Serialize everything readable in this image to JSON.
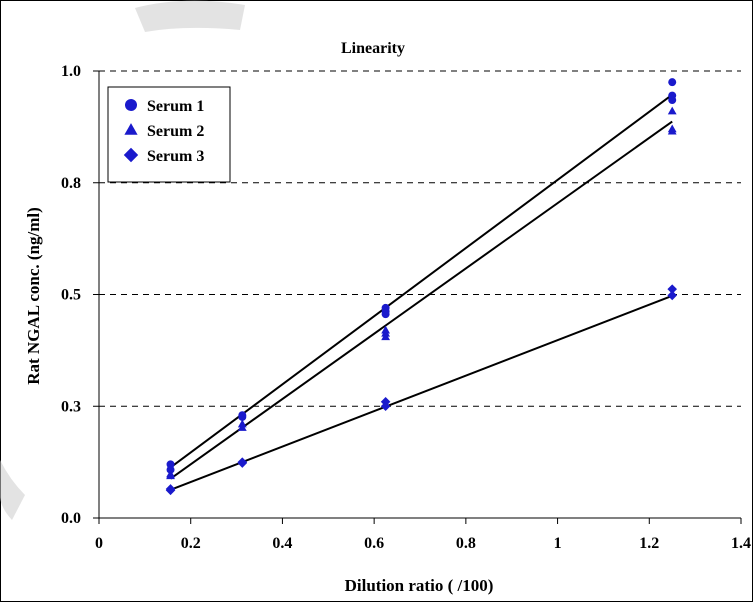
{
  "chart_data": {
    "type": "scatter",
    "title": "Linearity",
    "xlabel": "Dilution ratio ( /100)",
    "ylabel": "Rat NGAL conc. (ng/ml)",
    "xlim": [
      0,
      1.4
    ],
    "ylim": [
      0,
      1.0
    ],
    "x_ticks": [
      0,
      0.2,
      0.4,
      0.6,
      0.8,
      1,
      1.2,
      1.4
    ],
    "x_tick_labels": [
      "0",
      "0.2",
      "0.4",
      "0.6",
      "0.8",
      "1",
      "1.2",
      "1.4"
    ],
    "y_ticks": [
      0,
      0.25,
      0.5,
      0.75,
      1.0
    ],
    "y_tick_labels": [
      "0.0",
      "0.3",
      "0.5",
      "0.8",
      "1.0"
    ],
    "grid": "horizontal dashed",
    "legend_position": "top-left",
    "series": [
      {
        "name": "Serum 1",
        "marker": "circle",
        "color": "#1a1acc",
        "points": [
          [
            0.156,
            0.12
          ],
          [
            0.156,
            0.108
          ],
          [
            0.3125,
            0.23
          ],
          [
            0.3125,
            0.226
          ],
          [
            0.625,
            0.47
          ],
          [
            0.625,
            0.456
          ],
          [
            0.625,
            0.462
          ],
          [
            1.25,
            0.975
          ],
          [
            1.25,
            0.945
          ],
          [
            1.25,
            0.935
          ]
        ],
        "fit": [
          [
            0.156,
            0.113
          ],
          [
            1.25,
            0.947
          ]
        ]
      },
      {
        "name": "Serum 2",
        "marker": "triangle",
        "color": "#1a1acc",
        "points": [
          [
            0.156,
            0.098
          ],
          [
            0.156,
            0.094
          ],
          [
            0.3125,
            0.21
          ],
          [
            0.3125,
            0.202
          ],
          [
            0.625,
            0.42
          ],
          [
            0.625,
            0.405
          ],
          [
            0.625,
            0.413
          ],
          [
            1.25,
            0.91
          ],
          [
            1.25,
            0.87
          ],
          [
            1.25,
            0.865
          ]
        ],
        "fit": [
          [
            0.156,
            0.088
          ],
          [
            1.25,
            0.887
          ]
        ]
      },
      {
        "name": "Serum 3",
        "marker": "diamond",
        "color": "#1a1acc",
        "points": [
          [
            0.156,
            0.065
          ],
          [
            0.156,
            0.062
          ],
          [
            0.3125,
            0.125
          ],
          [
            0.3125,
            0.123
          ],
          [
            0.625,
            0.26
          ],
          [
            0.625,
            0.25
          ],
          [
            1.25,
            0.512
          ],
          [
            1.25,
            0.498
          ]
        ],
        "fit": [
          [
            0.156,
            0.063
          ],
          [
            1.25,
            0.497
          ]
        ]
      }
    ],
    "fit_line_color": "#000000"
  }
}
